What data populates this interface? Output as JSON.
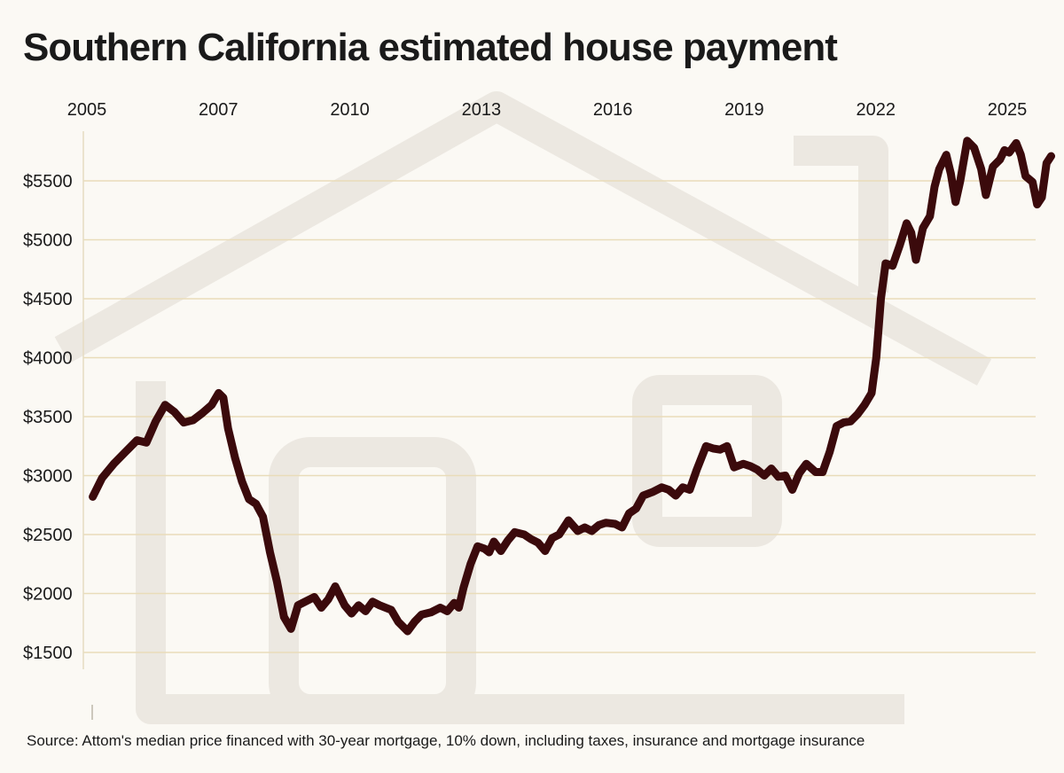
{
  "chart_data": {
    "type": "line",
    "title": "Southern California estimated house payment",
    "xlabel": "",
    "ylabel": "",
    "x_tick_labels": [
      "2005",
      "2007",
      "2010",
      "2013",
      "2016",
      "2019",
      "2022",
      "2025"
    ],
    "y_tick_labels": [
      "$5500",
      "$5000",
      "$4500",
      "$4000",
      "$3500",
      "$3000",
      "$2500",
      "$2000",
      "$1500"
    ],
    "y_ticks": [
      5500,
      5000,
      4500,
      4000,
      3500,
      3000,
      2500,
      2000,
      1500
    ],
    "ylim": [
      1350,
      5950
    ],
    "xlim": [
      2005.0,
      2025.4
    ],
    "grid": true,
    "legend": "none",
    "series": [
      {
        "color": "#3b0a0c",
        "points": [
          [
            2005.05,
            2820
          ],
          [
            2005.25,
            2980
          ],
          [
            2005.5,
            3100
          ],
          [
            2005.75,
            3200
          ],
          [
            2006.0,
            3300
          ],
          [
            2006.2,
            3280
          ],
          [
            2006.4,
            3460
          ],
          [
            2006.6,
            3600
          ],
          [
            2006.8,
            3540
          ],
          [
            2007.0,
            3450
          ],
          [
            2007.2,
            3470
          ],
          [
            2007.4,
            3530
          ],
          [
            2007.6,
            3600
          ],
          [
            2007.75,
            3700
          ],
          [
            2007.85,
            3660
          ],
          [
            2007.95,
            3400
          ],
          [
            2008.1,
            3150
          ],
          [
            2008.25,
            2950
          ],
          [
            2008.4,
            2800
          ],
          [
            2008.55,
            2760
          ],
          [
            2008.7,
            2650
          ],
          [
            2008.85,
            2350
          ],
          [
            2009.0,
            2100
          ],
          [
            2009.15,
            1800
          ],
          [
            2009.3,
            1700
          ],
          [
            2009.45,
            1900
          ],
          [
            2009.6,
            1930
          ],
          [
            2009.8,
            1970
          ],
          [
            2009.95,
            1880
          ],
          [
            2010.1,
            1950
          ],
          [
            2010.25,
            2060
          ],
          [
            2010.45,
            1900
          ],
          [
            2010.6,
            1830
          ],
          [
            2010.75,
            1900
          ],
          [
            2010.9,
            1850
          ],
          [
            2011.05,
            1930
          ],
          [
            2011.2,
            1900
          ],
          [
            2011.45,
            1860
          ],
          [
            2011.6,
            1760
          ],
          [
            2011.8,
            1680
          ],
          [
            2011.95,
            1760
          ],
          [
            2012.1,
            1820
          ],
          [
            2012.3,
            1840
          ],
          [
            2012.5,
            1880
          ],
          [
            2012.65,
            1850
          ],
          [
            2012.8,
            1920
          ],
          [
            2012.9,
            1880
          ],
          [
            2013.0,
            2050
          ],
          [
            2013.15,
            2250
          ],
          [
            2013.3,
            2400
          ],
          [
            2013.45,
            2380
          ],
          [
            2013.55,
            2350
          ],
          [
            2013.65,
            2440
          ],
          [
            2013.8,
            2360
          ],
          [
            2013.95,
            2450
          ],
          [
            2014.1,
            2520
          ],
          [
            2014.3,
            2500
          ],
          [
            2014.45,
            2460
          ],
          [
            2014.6,
            2430
          ],
          [
            2014.75,
            2360
          ],
          [
            2014.9,
            2470
          ],
          [
            2015.05,
            2500
          ],
          [
            2015.25,
            2620
          ],
          [
            2015.45,
            2530
          ],
          [
            2015.6,
            2560
          ],
          [
            2015.75,
            2530
          ],
          [
            2015.9,
            2580
          ],
          [
            2016.05,
            2600
          ],
          [
            2016.25,
            2590
          ],
          [
            2016.4,
            2560
          ],
          [
            2016.55,
            2680
          ],
          [
            2016.7,
            2720
          ],
          [
            2016.85,
            2830
          ],
          [
            2017.05,
            2860
          ],
          [
            2017.25,
            2900
          ],
          [
            2017.4,
            2880
          ],
          [
            2017.55,
            2830
          ],
          [
            2017.7,
            2900
          ],
          [
            2017.85,
            2880
          ],
          [
            2018.0,
            3050
          ],
          [
            2018.2,
            3250
          ],
          [
            2018.35,
            3230
          ],
          [
            2018.5,
            3220
          ],
          [
            2018.65,
            3250
          ],
          [
            2018.8,
            3070
          ],
          [
            2019.0,
            3100
          ],
          [
            2019.15,
            3080
          ],
          [
            2019.3,
            3050
          ],
          [
            2019.45,
            3000
          ],
          [
            2019.6,
            3060
          ],
          [
            2019.75,
            2990
          ],
          [
            2019.9,
            3000
          ],
          [
            2020.05,
            2880
          ],
          [
            2020.2,
            3020
          ],
          [
            2020.35,
            3100
          ],
          [
            2020.55,
            3030
          ],
          [
            2020.7,
            3030
          ],
          [
            2020.85,
            3200
          ],
          [
            2021.0,
            3420
          ],
          [
            2021.15,
            3450
          ],
          [
            2021.3,
            3460
          ],
          [
            2021.45,
            3520
          ],
          [
            2021.6,
            3600
          ],
          [
            2021.75,
            3700
          ],
          [
            2021.85,
            4000
          ],
          [
            2021.95,
            4500
          ],
          [
            2022.05,
            4800
          ],
          [
            2022.2,
            4780
          ],
          [
            2022.35,
            4950
          ],
          [
            2022.5,
            5140
          ],
          [
            2022.6,
            5060
          ],
          [
            2022.7,
            4830
          ],
          [
            2022.85,
            5100
          ],
          [
            2023.0,
            5200
          ],
          [
            2023.1,
            5450
          ],
          [
            2023.2,
            5600
          ],
          [
            2023.35,
            5720
          ],
          [
            2023.45,
            5560
          ],
          [
            2023.55,
            5320
          ],
          [
            2023.65,
            5500
          ],
          [
            2023.8,
            5840
          ],
          [
            2023.95,
            5780
          ],
          [
            2024.1,
            5600
          ],
          [
            2024.2,
            5380
          ],
          [
            2024.35,
            5620
          ],
          [
            2024.5,
            5680
          ],
          [
            2024.6,
            5760
          ],
          [
            2024.7,
            5740
          ],
          [
            2024.85,
            5820
          ],
          [
            2024.95,
            5720
          ],
          [
            2025.05,
            5540
          ],
          [
            2025.2,
            5490
          ],
          [
            2025.3,
            5300
          ],
          [
            2025.4,
            5360
          ],
          [
            2025.5,
            5650
          ],
          [
            2025.6,
            5710
          ]
        ]
      }
    ],
    "source": "Source: Attom's median price financed with 30-year mortgage, 10% down,  including taxes, insurance and mortgage insurance"
  }
}
